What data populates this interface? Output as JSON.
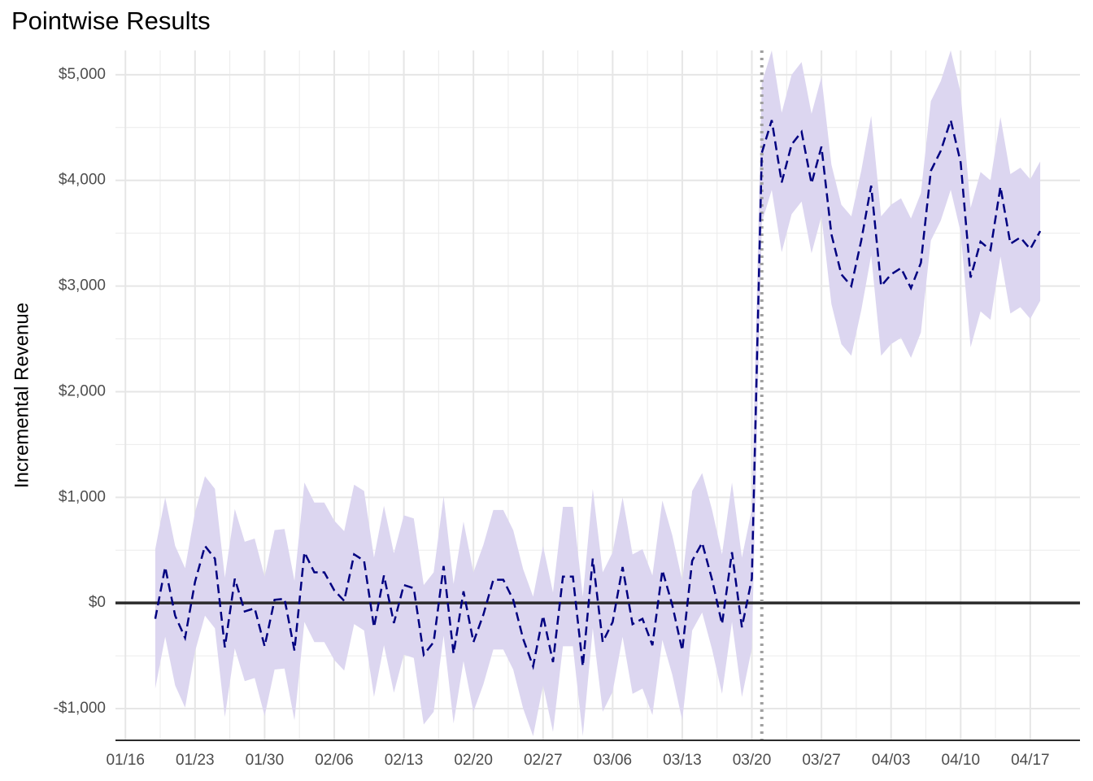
{
  "chart_data": {
    "type": "line",
    "title": "Pointwise Results",
    "y_label": "Incremental Revenue",
    "x": [
      "01/19",
      "01/20",
      "01/21",
      "01/22",
      "01/23",
      "01/24",
      "01/25",
      "01/26",
      "01/27",
      "01/28",
      "01/29",
      "01/30",
      "01/31",
      "02/01",
      "02/02",
      "02/03",
      "02/04",
      "02/05",
      "02/06",
      "02/07",
      "02/08",
      "02/09",
      "02/10",
      "02/11",
      "02/12",
      "02/13",
      "02/14",
      "02/15",
      "02/16",
      "02/17",
      "02/18",
      "02/19",
      "02/20",
      "02/21",
      "02/22",
      "02/23",
      "02/24",
      "02/25",
      "02/26",
      "02/27",
      "02/28",
      "03/01",
      "03/02",
      "03/03",
      "03/04",
      "03/05",
      "03/06",
      "03/07",
      "03/08",
      "03/09",
      "03/10",
      "03/11",
      "03/12",
      "03/13",
      "03/14",
      "03/15",
      "03/16",
      "03/17",
      "03/18",
      "03/19",
      "03/20",
      "03/21",
      "03/22",
      "03/23",
      "03/24",
      "03/25",
      "03/26",
      "03/27",
      "03/28",
      "03/29",
      "03/30",
      "03/31",
      "04/01",
      "04/02",
      "04/03",
      "04/04",
      "04/05",
      "04/06",
      "04/07",
      "04/08",
      "04/09",
      "04/10",
      "04/11",
      "04/12",
      "04/13",
      "04/14",
      "04/15",
      "04/16",
      "04/17",
      "04/18"
    ],
    "values": [
      -150,
      340,
      -120,
      -330,
      200,
      540,
      420,
      -420,
      230,
      -80,
      -50,
      -410,
      30,
      40,
      -450,
      480,
      290,
      290,
      120,
      20,
      460,
      400,
      -230,
      260,
      -190,
      170,
      140,
      -490,
      -370,
      350,
      -480,
      110,
      -370,
      -110,
      220,
      220,
      30,
      -340,
      -600,
      -120,
      -560,
      250,
      250,
      -600,
      420,
      -370,
      -180,
      340,
      -200,
      -150,
      -400,
      310,
      -20,
      -450,
      400,
      570,
      220,
      -200,
      480,
      -230,
      230,
      4260,
      4570,
      3980,
      4340,
      4460,
      3970,
      4320,
      3490,
      3110,
      3000,
      3430,
      3950,
      3000,
      3110,
      3170,
      2980,
      3220,
      4090,
      4280,
      4570,
      4170,
      3080,
      3420,
      3340,
      3940,
      3400,
      3460,
      3350,
      3520
    ],
    "upper": [
      510,
      1000,
      540,
      330,
      860,
      1200,
      1080,
      240,
      890,
      580,
      610,
      250,
      690,
      700,
      210,
      1140,
      950,
      950,
      780,
      680,
      1120,
      1060,
      430,
      920,
      470,
      830,
      800,
      170,
      290,
      1010,
      180,
      770,
      290,
      550,
      880,
      880,
      690,
      320,
      60,
      540,
      100,
      910,
      910,
      60,
      1080,
      290,
      480,
      1000,
      460,
      510,
      260,
      970,
      640,
      210,
      1060,
      1230,
      880,
      460,
      1140,
      430,
      890,
      4920,
      5230,
      4640,
      5000,
      5120,
      4630,
      4980,
      4150,
      3770,
      3660,
      4090,
      4610,
      3660,
      3770,
      3830,
      3640,
      3880,
      4750,
      4940,
      5230,
      4830,
      3740,
      4080,
      4000,
      4600,
      4060,
      4120,
      4010,
      4180
    ],
    "lower": [
      -810,
      -320,
      -780,
      -990,
      -460,
      -120,
      -240,
      -1080,
      -430,
      -740,
      -710,
      -1070,
      -630,
      -620,
      -1110,
      -180,
      -370,
      -370,
      -540,
      -640,
      -200,
      -260,
      -890,
      -400,
      -850,
      -490,
      -520,
      -1150,
      -1030,
      -310,
      -1140,
      -550,
      -1030,
      -770,
      -440,
      -440,
      -630,
      -1000,
      -1260,
      -780,
      -1220,
      -410,
      -410,
      -1260,
      -240,
      -1030,
      -840,
      -320,
      -860,
      -810,
      -1060,
      -350,
      -680,
      -1110,
      -260,
      -90,
      -440,
      -860,
      -180,
      -890,
      -430,
      3600,
      3910,
      3320,
      3680,
      3800,
      3310,
      3660,
      2830,
      2450,
      2340,
      2770,
      3290,
      2340,
      2450,
      2510,
      2320,
      2560,
      3430,
      3620,
      3910,
      3510,
      2420,
      2760,
      2680,
      3280,
      2740,
      2800,
      2690,
      2860
    ],
    "color": "#000080",
    "band_color": "#dcd6f0",
    "intervention": "03/21",
    "xlim": [
      "01/15",
      "04/22"
    ],
    "xticks": [
      "01/16",
      "01/23",
      "01/30",
      "02/06",
      "02/13",
      "02/20",
      "02/27",
      "03/06",
      "03/13",
      "03/20",
      "03/27",
      "04/03",
      "04/10",
      "04/17"
    ],
    "ylim": [
      -1300,
      5230
    ],
    "yticks": [
      {
        "value": -1000,
        "label": "-$1,000"
      },
      {
        "value": 0,
        "label": "$0"
      },
      {
        "value": 1000,
        "label": "$1,000"
      },
      {
        "value": 2000,
        "label": "$2,000"
      },
      {
        "value": 3000,
        "label": "$3,000"
      },
      {
        "value": 4000,
        "label": "$4,000"
      },
      {
        "value": 5000,
        "label": "$5,000"
      }
    ],
    "grid": true
  }
}
